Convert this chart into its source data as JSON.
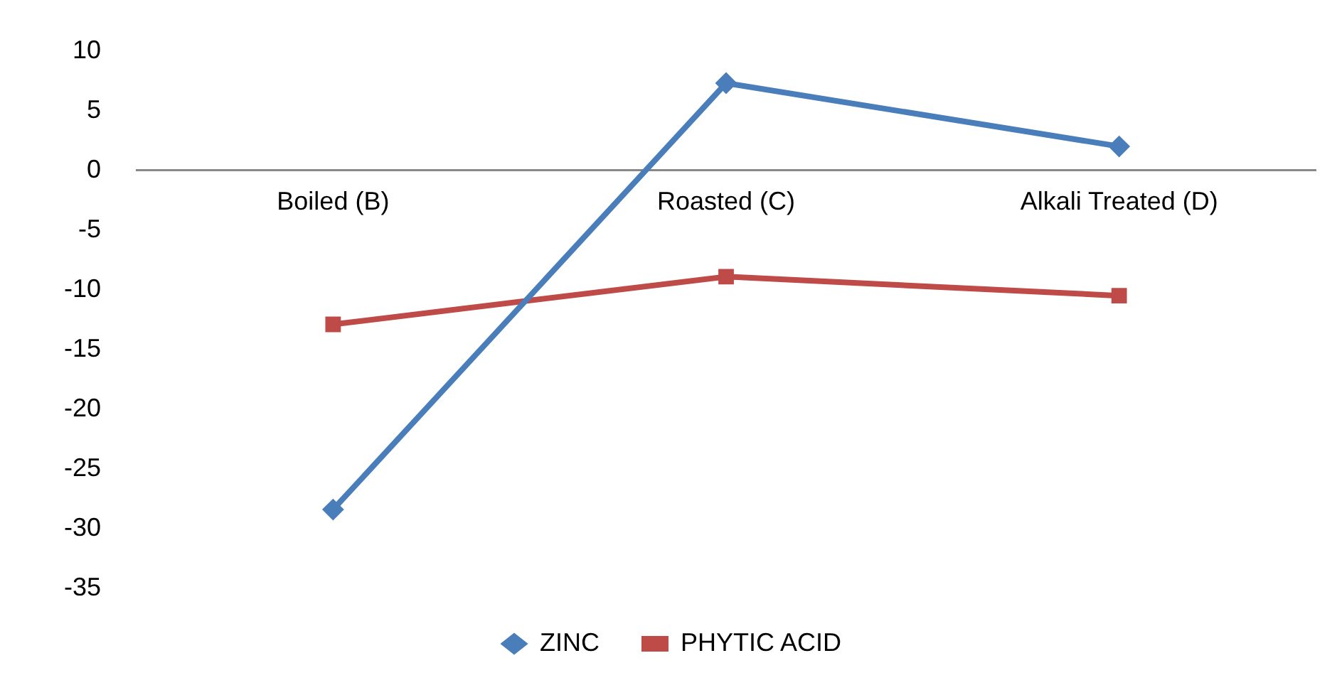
{
  "chart_data": {
    "type": "line",
    "categories": [
      "Boiled (B)",
      "Roasted (C)",
      "Alkali Treated (D)"
    ],
    "series": [
      {
        "name": "ZINC",
        "color": "#4a7ebb",
        "values": [
          -28.4,
          7.3,
          2.0
        ],
        "marker": "diamond"
      },
      {
        "name": "PHYTIC ACID",
        "color": "#be4b48",
        "values": [
          -12.9,
          -8.9,
          -10.5
        ],
        "marker": "square"
      }
    ],
    "ylim": [
      -35,
      10
    ],
    "yticks": [
      -35,
      -30,
      -25,
      -20,
      -15,
      -10,
      -5,
      0,
      5,
      10
    ],
    "grid": false,
    "legend": "bottom"
  }
}
